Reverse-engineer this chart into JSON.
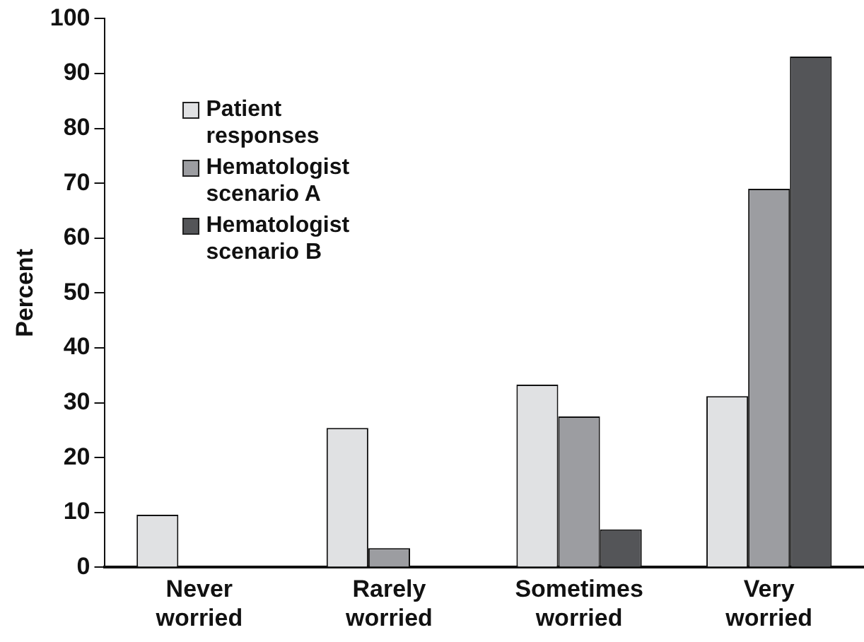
{
  "chart_data": {
    "type": "bar",
    "ylabel": "Percent",
    "categories": [
      "Never worried",
      "Rarely worried",
      "Sometimes worried",
      "Very worried"
    ],
    "series": [
      {
        "name": "Patient responses",
        "color": "#e0e1e3",
        "values": [
          9.6,
          25.4,
          33.3,
          31.2
        ]
      },
      {
        "name": "Hematologist scenario A",
        "color": "#9c9da1",
        "values": [
          0,
          3.5,
          27.5,
          69.0
        ]
      },
      {
        "name": "Hematologist scenario B",
        "color": "#545558",
        "values": [
          0,
          0,
          6.9,
          93.1
        ]
      }
    ],
    "ylim": [
      0,
      100
    ],
    "yticks": [
      0,
      10,
      20,
      30,
      40,
      50,
      60,
      70,
      80,
      90,
      100
    ],
    "grid": false,
    "legend": "top left"
  }
}
